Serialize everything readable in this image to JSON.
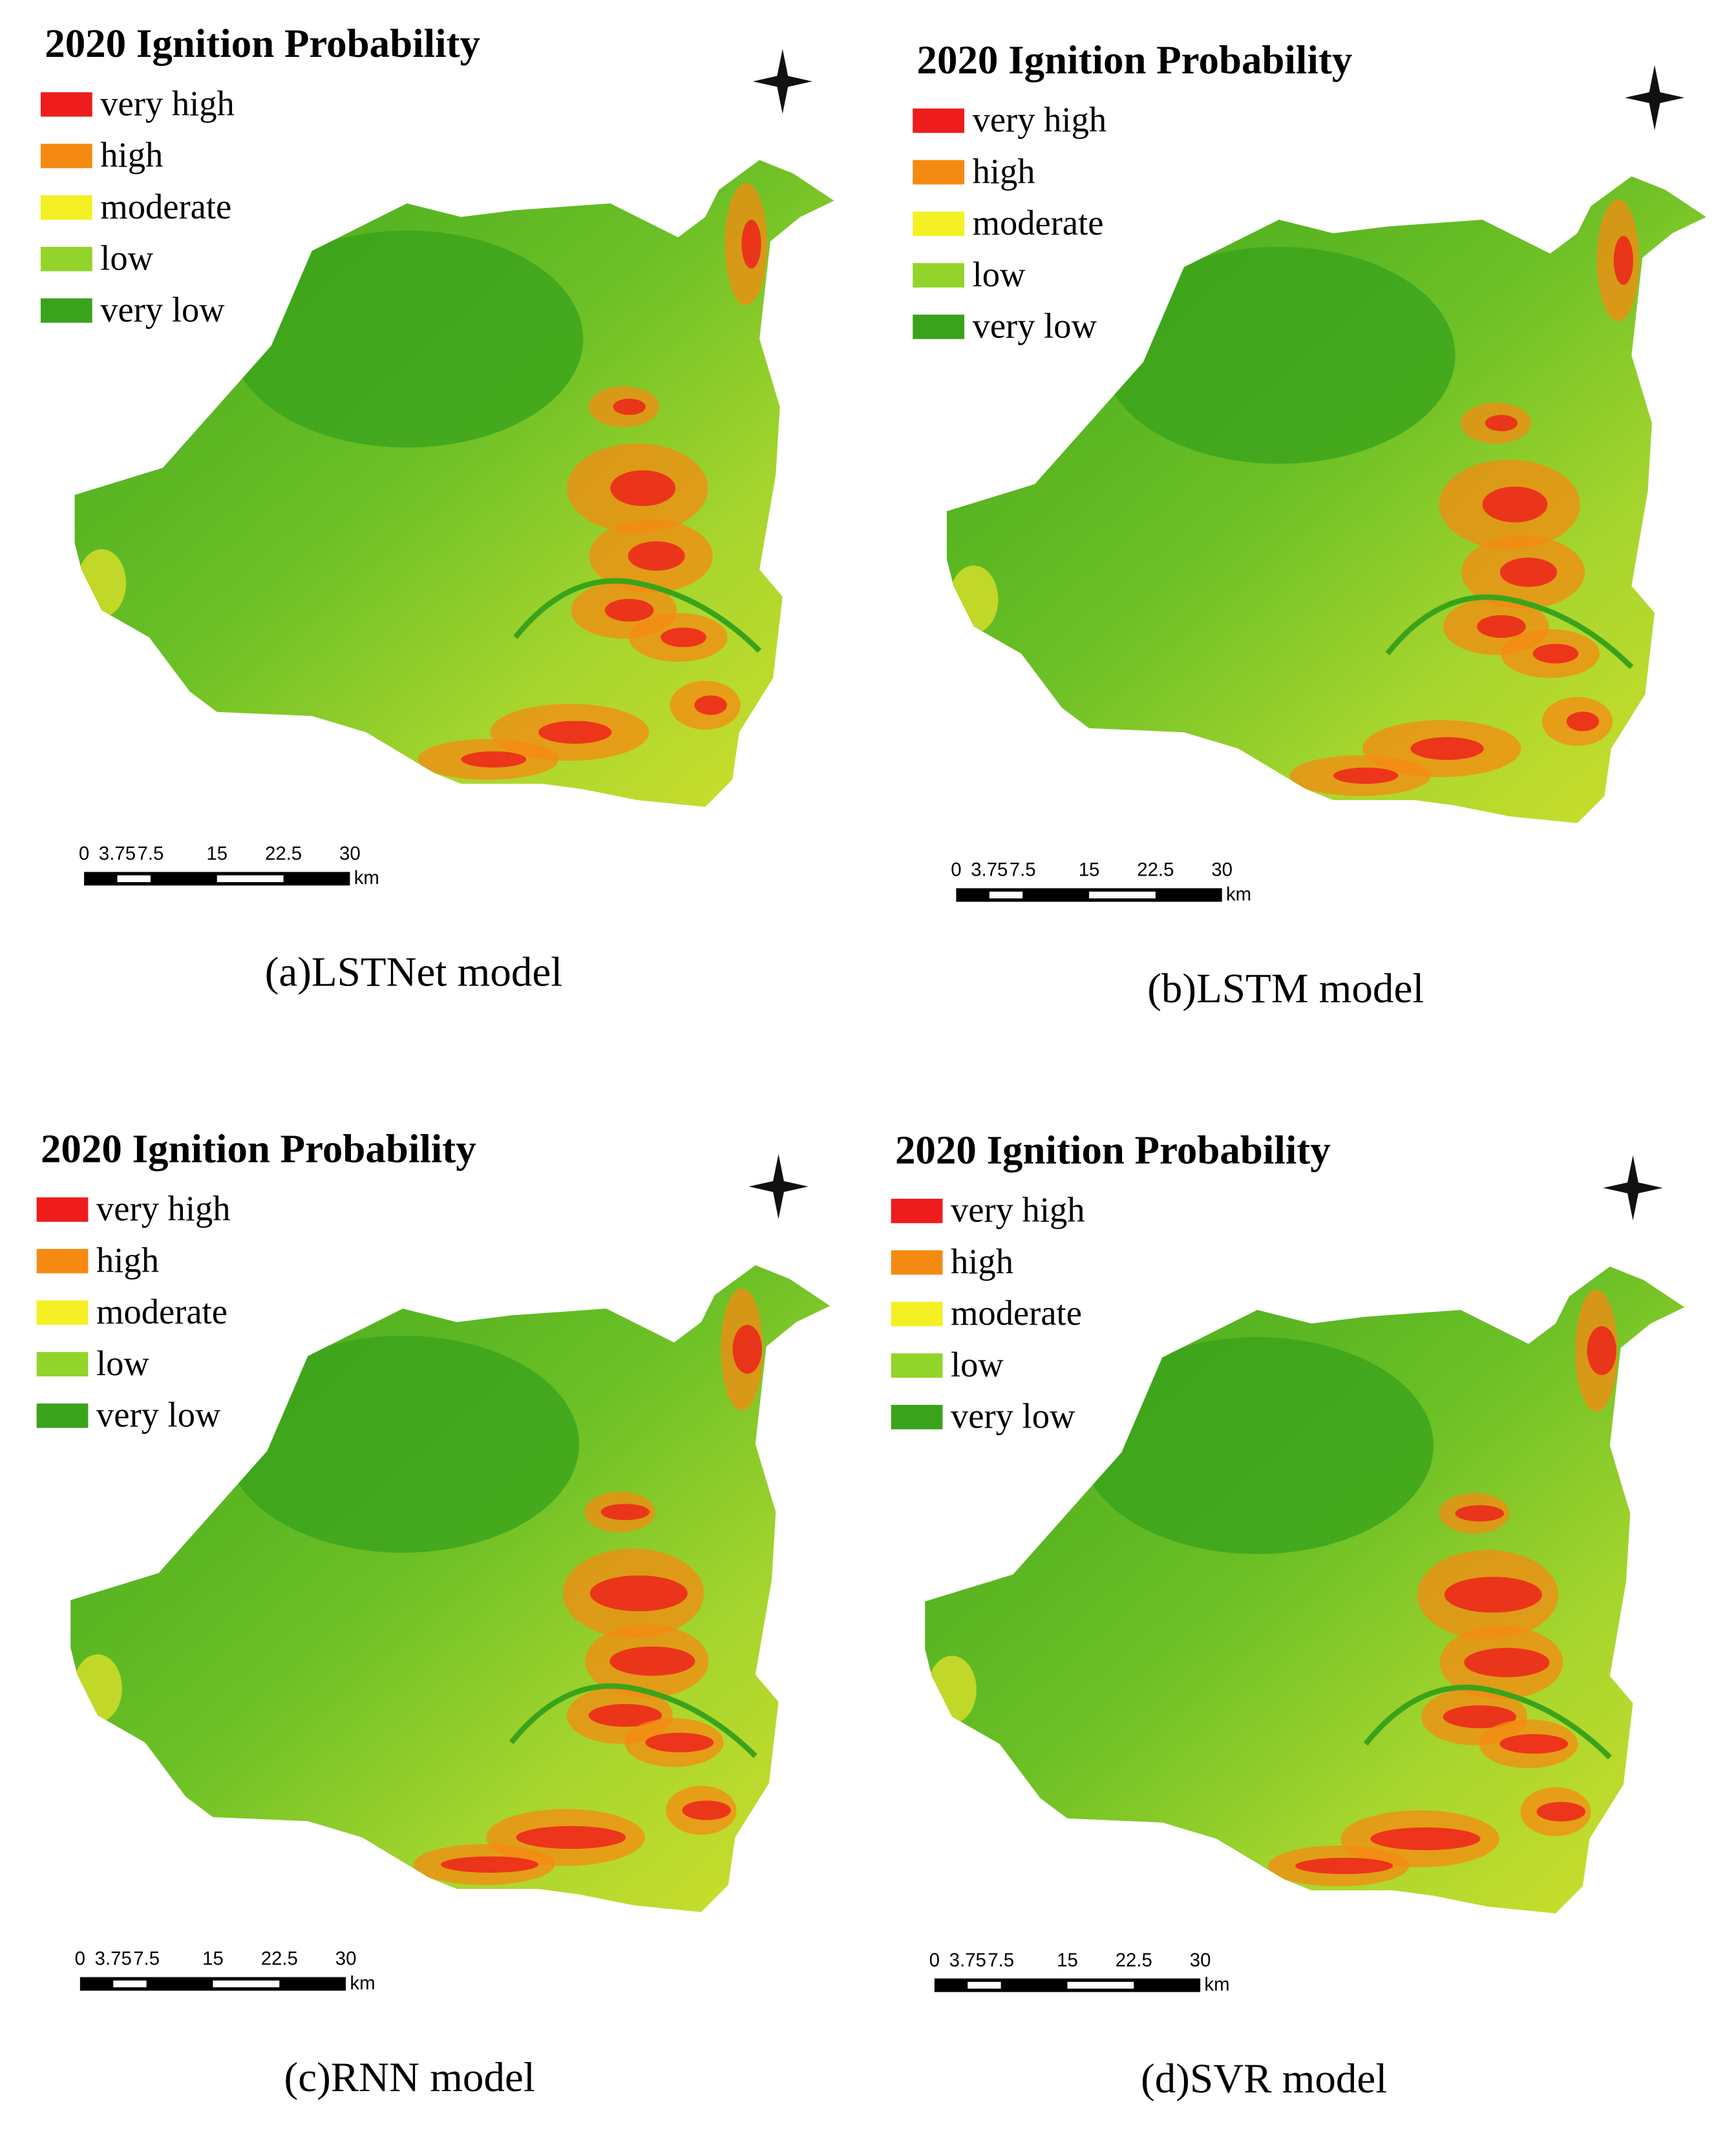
{
  "panels": [
    {
      "title": "2020 Ignition Probability",
      "legend": [
        {
          "label": "very high",
          "color": "#ee1c1c"
        },
        {
          "label": "high",
          "color": "#f58a12"
        },
        {
          "label": "moderate",
          "color": "#f4f023"
        },
        {
          "label": "low",
          "color": "#93d42a"
        },
        {
          "label": "very low",
          "color": "#3aa31b"
        }
      ],
      "scale_bar": {
        "ticks": [
          "0",
          "3.75",
          "7.5",
          "15",
          "22.5",
          "30"
        ],
        "unit": "km"
      },
      "caption": "(a)LSTNet model"
    },
    {
      "title": "2020 Ignition Probability",
      "legend": [
        {
          "label": "very high",
          "color": "#ee1c1c"
        },
        {
          "label": "high",
          "color": "#f58a12"
        },
        {
          "label": "moderate",
          "color": "#f4f023"
        },
        {
          "label": "low",
          "color": "#93d42a"
        },
        {
          "label": "very low",
          "color": "#3aa31b"
        }
      ],
      "scale_bar": {
        "ticks": [
          "0",
          "3.75",
          "7.5",
          "15",
          "22.5",
          "30"
        ],
        "unit": "km"
      },
      "caption": "(b)LSTM model"
    },
    {
      "title": "2020 Ignition Probability",
      "legend": [
        {
          "label": "very high",
          "color": "#ee1c1c"
        },
        {
          "label": "high",
          "color": "#f58a12"
        },
        {
          "label": "moderate",
          "color": "#f4f023"
        },
        {
          "label": "low",
          "color": "#93d42a"
        },
        {
          "label": "very low",
          "color": "#3aa31b"
        }
      ],
      "scale_bar": {
        "ticks": [
          "0",
          "3.75",
          "7.5",
          "15",
          "22.5",
          "30"
        ],
        "unit": "km"
      },
      "caption": "(c)RNN model"
    },
    {
      "title": "2020 Ignition Probability",
      "legend": [
        {
          "label": "very high",
          "color": "#ee1c1c"
        },
        {
          "label": "high",
          "color": "#f58a12"
        },
        {
          "label": "moderate",
          "color": "#f4f023"
        },
        {
          "label": "low",
          "color": "#93d42a"
        },
        {
          "label": "very low",
          "color": "#3aa31b"
        }
      ],
      "scale_bar": {
        "ticks": [
          "0",
          "3.75",
          "7.5",
          "15",
          "22.5",
          "30"
        ],
        "unit": "km"
      },
      "caption": "(d)SVR model"
    }
  ]
}
